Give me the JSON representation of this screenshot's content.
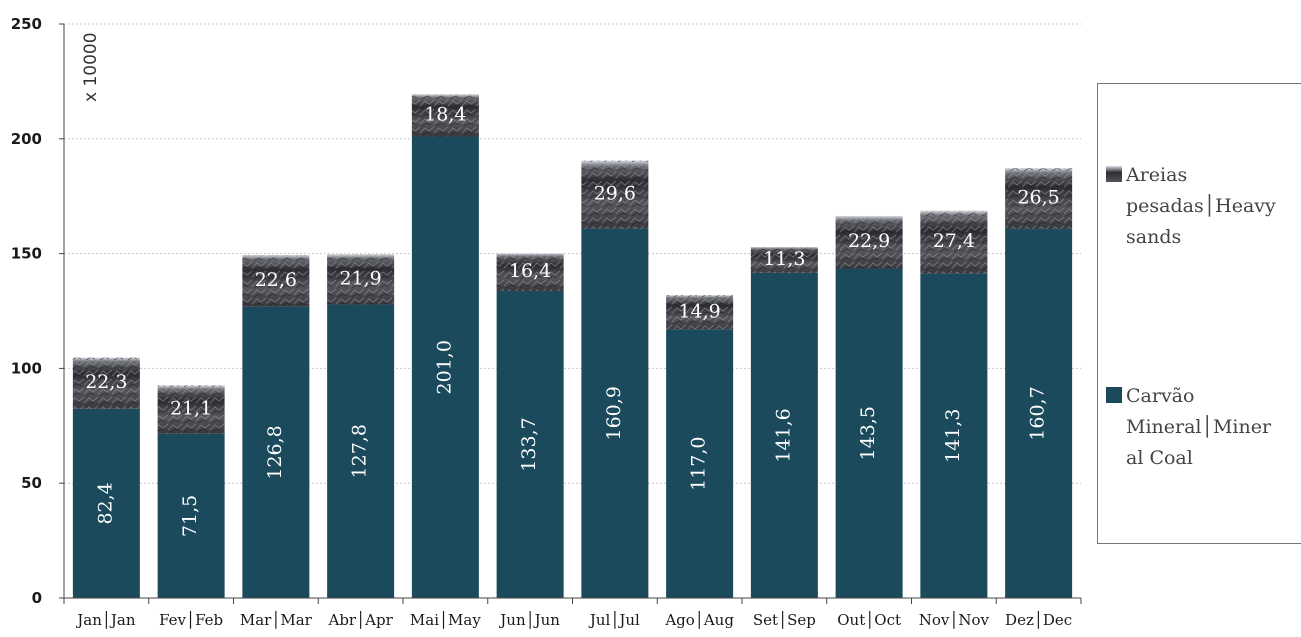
{
  "chart_data": {
    "type": "bar",
    "stacked": true,
    "unit_label": "x 10000",
    "categories": [
      "Jan│Jan",
      "Fev│Feb",
      "Mar│Mar",
      "Abr│Apr",
      "Mai│May",
      "Jun│Jun",
      "Jul│Jul",
      "Ago│Aug",
      "Set│Sep",
      "Out│Oct",
      "Nov│Nov",
      "Dez│Dec"
    ],
    "series": [
      {
        "name": "Carvão Mineral│Mineral Coal",
        "color": "#1b4a5c",
        "values": [
          82.4,
          71.5,
          126.8,
          127.8,
          201.0,
          133.7,
          160.9,
          117.0,
          141.6,
          143.5,
          141.3,
          160.7
        ],
        "value_labels": [
          "82,4",
          "71,5",
          "126,8",
          "127,8",
          "201,0",
          "133,7",
          "160,9",
          "117,0",
          "141,6",
          "143,5",
          "141,3",
          "160,7"
        ]
      },
      {
        "name": "Areias pesadas│Heavy sands",
        "color": "#3b3b40",
        "values": [
          22.3,
          21.1,
          22.6,
          21.9,
          18.4,
          16.4,
          29.6,
          14.9,
          11.3,
          22.9,
          27.4,
          26.5
        ],
        "value_labels": [
          "22,3",
          "21,1",
          "22,6",
          "21,9",
          "18,4",
          "16,4",
          "29,6",
          "14,9",
          "11,3",
          "22,9",
          "27,4",
          "26,5"
        ]
      }
    ],
    "y_ticks": [
      "0",
      "50",
      "100",
      "150",
      "200",
      "250"
    ],
    "ylim": [
      0,
      250
    ],
    "grid": true,
    "legend_position": "right"
  },
  "legend": {
    "items": [
      {
        "label_lines": [
          "Areias",
          "pesadas│Heavy",
          "sands"
        ]
      },
      {
        "label_lines": [
          "Carvão",
          "Mineral│Miner",
          "al Coal"
        ]
      }
    ]
  }
}
